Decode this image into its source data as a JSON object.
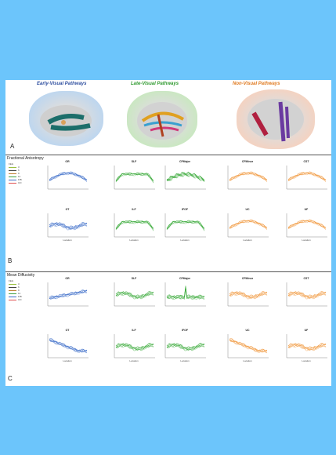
{
  "panel_a": {
    "titles": [
      {
        "text": "Early-Visual Pathways",
        "color": "#3050a0"
      },
      {
        "text": "Late-Visual Pathways",
        "color": "#2f9a2f"
      },
      {
        "text": "Non-Visual Pathways",
        "color": "#e07a20"
      }
    ],
    "letter": "A"
  },
  "panel_b": {
    "title": "Fractional Anisotropy",
    "letter": "B"
  },
  "panel_c": {
    "title": "Mean Diffusivity",
    "letter": "C"
  },
  "location_label": "Location",
  "legend_b": {
    "header": "FEG",
    "items": [
      "3",
      "6",
      "9",
      "11",
      "F/B",
      "CO"
    ]
  },
  "legend_c": {
    "header": "FEG",
    "items": [
      "3",
      "6",
      "9",
      "11",
      "F/B",
      "CO"
    ]
  },
  "chart_data": [
    {
      "type": "line",
      "panel": "B",
      "title": "OR",
      "color": "#3a6bc8",
      "trend": "arch"
    },
    {
      "type": "line",
      "panel": "B",
      "title": "OT",
      "color": "#3a6bc8",
      "trend": "flat"
    },
    {
      "type": "line",
      "panel": "B",
      "title": "SLF",
      "color": "#3aaa3a",
      "trend": "plateau"
    },
    {
      "type": "line",
      "panel": "B",
      "title": "ILF",
      "color": "#3aaa3a",
      "trend": "plateau"
    },
    {
      "type": "line",
      "panel": "B",
      "title": "CFMajor",
      "color": "#3aaa3a",
      "trend": "noisy"
    },
    {
      "type": "line",
      "panel": "B",
      "title": "IFOF",
      "color": "#3aaa3a",
      "trend": "plateau"
    },
    {
      "type": "line",
      "panel": "B",
      "title": "CFMinor",
      "color": "#f0963a",
      "trend": "arch"
    },
    {
      "type": "line",
      "panel": "B",
      "title": "UC",
      "color": "#f0963a",
      "trend": "arch"
    },
    {
      "type": "line",
      "panel": "B",
      "title": "CST",
      "color": "#f0963a",
      "trend": "arch"
    },
    {
      "type": "line",
      "panel": "B",
      "title": "UF",
      "color": "#f0963a",
      "trend": "arch"
    },
    {
      "type": "line",
      "panel": "C",
      "title": "OR",
      "color": "#3a6bc8",
      "trend": "rising"
    },
    {
      "type": "line",
      "panel": "C",
      "title": "OT",
      "color": "#3a6bc8",
      "trend": "falling"
    },
    {
      "type": "line",
      "panel": "C",
      "title": "SLF",
      "color": "#3aaa3a",
      "trend": "flat"
    },
    {
      "type": "line",
      "panel": "C",
      "title": "ILF",
      "color": "#3aaa3a",
      "trend": "flat"
    },
    {
      "type": "line",
      "panel": "C",
      "title": "CFMajor",
      "color": "#3aaa3a",
      "trend": "spike"
    },
    {
      "type": "line",
      "panel": "C",
      "title": "IFOF",
      "color": "#3aaa3a",
      "trend": "flat"
    },
    {
      "type": "line",
      "panel": "C",
      "title": "CFMinor",
      "color": "#f0963a",
      "trend": "flat"
    },
    {
      "type": "line",
      "panel": "C",
      "title": "UC",
      "color": "#f0963a",
      "trend": "falling"
    },
    {
      "type": "line",
      "panel": "C",
      "title": "CST",
      "color": "#f0963a",
      "trend": "flat"
    },
    {
      "type": "line",
      "panel": "C",
      "title": "UF",
      "color": "#f0963a",
      "trend": "flat"
    }
  ]
}
